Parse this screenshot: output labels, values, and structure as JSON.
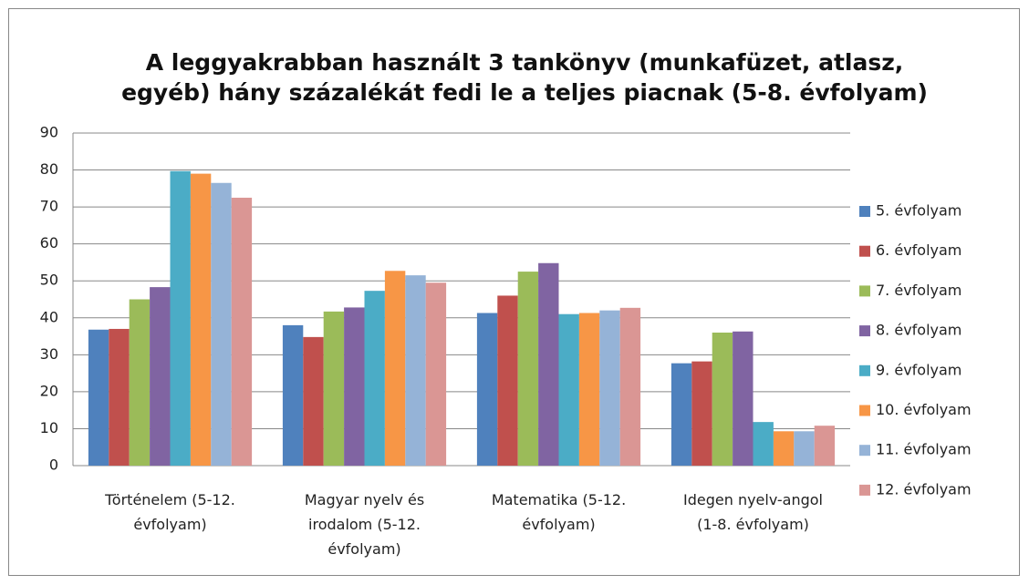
{
  "chart_data": {
    "type": "bar",
    "title": "A leggyakrabban használt 3 tankönyv (munkafüzet, atlasz,\negyéb) hány százalékát fedi le a teljes piacnak (5-8. évfolyam)",
    "categories": [
      "Történelem (5-12.\névfolyam)",
      "Magyar nyelv és\nirodalom (5-12.\névfolyam)",
      "Matematika (5-12.\névfolyam)",
      "Idegen nyelv-angol\n(1-8. évfolyam)"
    ],
    "series": [
      {
        "name": "5. évfolyam",
        "color": "#4f81bd",
        "values": [
          36.8,
          38,
          41.3,
          27.7
        ]
      },
      {
        "name": "6. évfolyam",
        "color": "#c0504d",
        "values": [
          37,
          34.8,
          46,
          28.2
        ]
      },
      {
        "name": "7. évfolyam",
        "color": "#9bbb59",
        "values": [
          45,
          41.7,
          52.5,
          36
        ]
      },
      {
        "name": "8. évfolyam",
        "color": "#8064a2",
        "values": [
          48.3,
          42.8,
          54.8,
          36.3
        ]
      },
      {
        "name": "9. évfolyam",
        "color": "#4bacc6",
        "values": [
          79.7,
          47.3,
          41,
          11.8
        ]
      },
      {
        "name": "10. évfolyam",
        "color": "#f79646",
        "values": [
          79,
          52.7,
          41.3,
          9.3
        ]
      },
      {
        "name": "11. évfolyam",
        "color": "#95b3d7",
        "values": [
          76.5,
          51.5,
          42,
          9.3
        ]
      },
      {
        "name": "12. évfolyam",
        "color": "#da9694",
        "values": [
          72.5,
          49.5,
          42.7,
          10.8
        ]
      }
    ],
    "ylim": [
      0,
      90
    ],
    "yticks": [
      0,
      10,
      20,
      30,
      40,
      50,
      60,
      70,
      80,
      90
    ],
    "grid": true,
    "legend": "right"
  }
}
